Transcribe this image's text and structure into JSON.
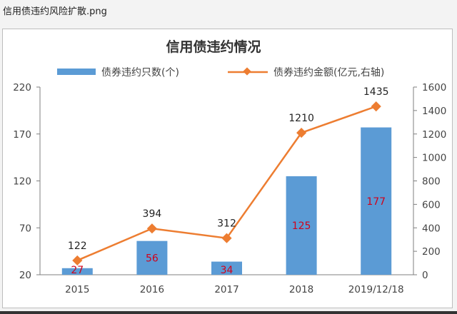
{
  "window": {
    "title": "信用债违约风险扩散.png"
  },
  "chart_data": {
    "type": "bar",
    "title": "信用债违约情况",
    "categories": [
      "2015",
      "2016",
      "2017",
      "2018",
      "2019/12/18"
    ],
    "series": [
      {
        "name": "债券违约只数(个)",
        "type": "bar",
        "axis": "left",
        "color": "#5b9bd5",
        "values": [
          27,
          56,
          34,
          125,
          177
        ]
      },
      {
        "name": "债券违约金额(亿元,右轴)",
        "type": "line",
        "axis": "right",
        "color": "#ed7d31",
        "values": [
          122,
          394,
          312,
          1210,
          1435
        ]
      }
    ],
    "y_left": {
      "min": 20,
      "max": 220,
      "ticks": [
        20,
        70,
        120,
        170,
        220
      ]
    },
    "y_right": {
      "min": 0,
      "max": 1600,
      "ticks": [
        0,
        200,
        400,
        600,
        800,
        1000,
        1200,
        1400,
        1600
      ]
    },
    "legend": "top",
    "grid": false
  }
}
